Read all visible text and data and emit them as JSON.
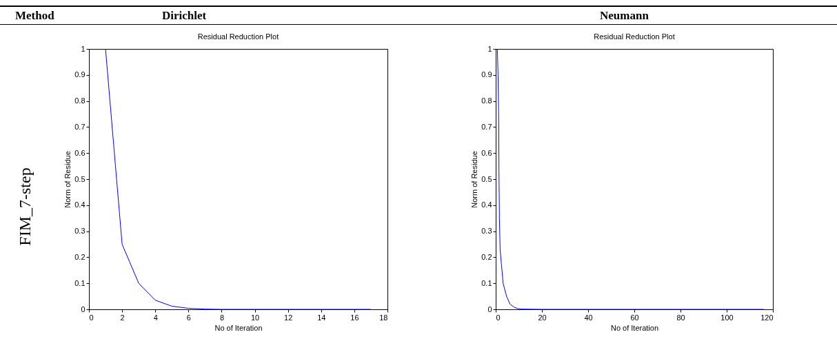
{
  "chart_data": [
    {
      "type": "line",
      "title": "Residual Reduction Plot",
      "xlabel": "No of Iteration",
      "ylabel": "Norm of Residue",
      "annotations": [
        "Method",
        "Dirichlet",
        "FIM_7-step"
      ],
      "x": [
        1,
        2,
        3,
        4,
        5,
        6,
        7,
        8,
        17
      ],
      "series": [
        {
          "color": "#0000ff",
          "values": [
            1,
            0.25,
            0.1,
            0.035,
            0.012,
            0.004,
            0.001,
            0,
            0
          ]
        }
      ],
      "xlim": [
        0,
        18
      ],
      "xticks": [
        0,
        2,
        4,
        6,
        8,
        10,
        12,
        14,
        16,
        18
      ],
      "ylim": [
        0,
        1
      ],
      "yticks": [
        0,
        0.1,
        0.2,
        0.3,
        0.4,
        0.5,
        0.6,
        0.7,
        0.8,
        0.9,
        1
      ],
      "marker": "none"
    },
    {
      "type": "line",
      "title": "Residual Reduction Plot",
      "xlabel": "No of Iteration",
      "ylabel": "Norm of Residue",
      "annotations": [
        "Neumann"
      ],
      "x": [
        0.7,
        1,
        1.3,
        1.4,
        1.6,
        1.9,
        2.8,
        3.2,
        4.7,
        6.2,
        8,
        9.5,
        11,
        20,
        116
      ],
      "series": [
        {
          "color": "#0000ff",
          "values": [
            1,
            0.9,
            0.72,
            0.53,
            0.35,
            0.23,
            0.14,
            0.1,
            0.05,
            0.02,
            0.008,
            0.003,
            0.001,
            0,
            0
          ]
        }
      ],
      "xlim": [
        0,
        120
      ],
      "xticks": [
        0,
        20,
        40,
        60,
        80,
        100,
        120
      ],
      "ylim": [
        0,
        1
      ],
      "yticks": [
        0,
        0.1,
        0.2,
        0.3,
        0.4,
        0.5,
        0.6,
        0.7,
        0.8,
        0.9,
        1
      ],
      "marker": "none"
    }
  ]
}
